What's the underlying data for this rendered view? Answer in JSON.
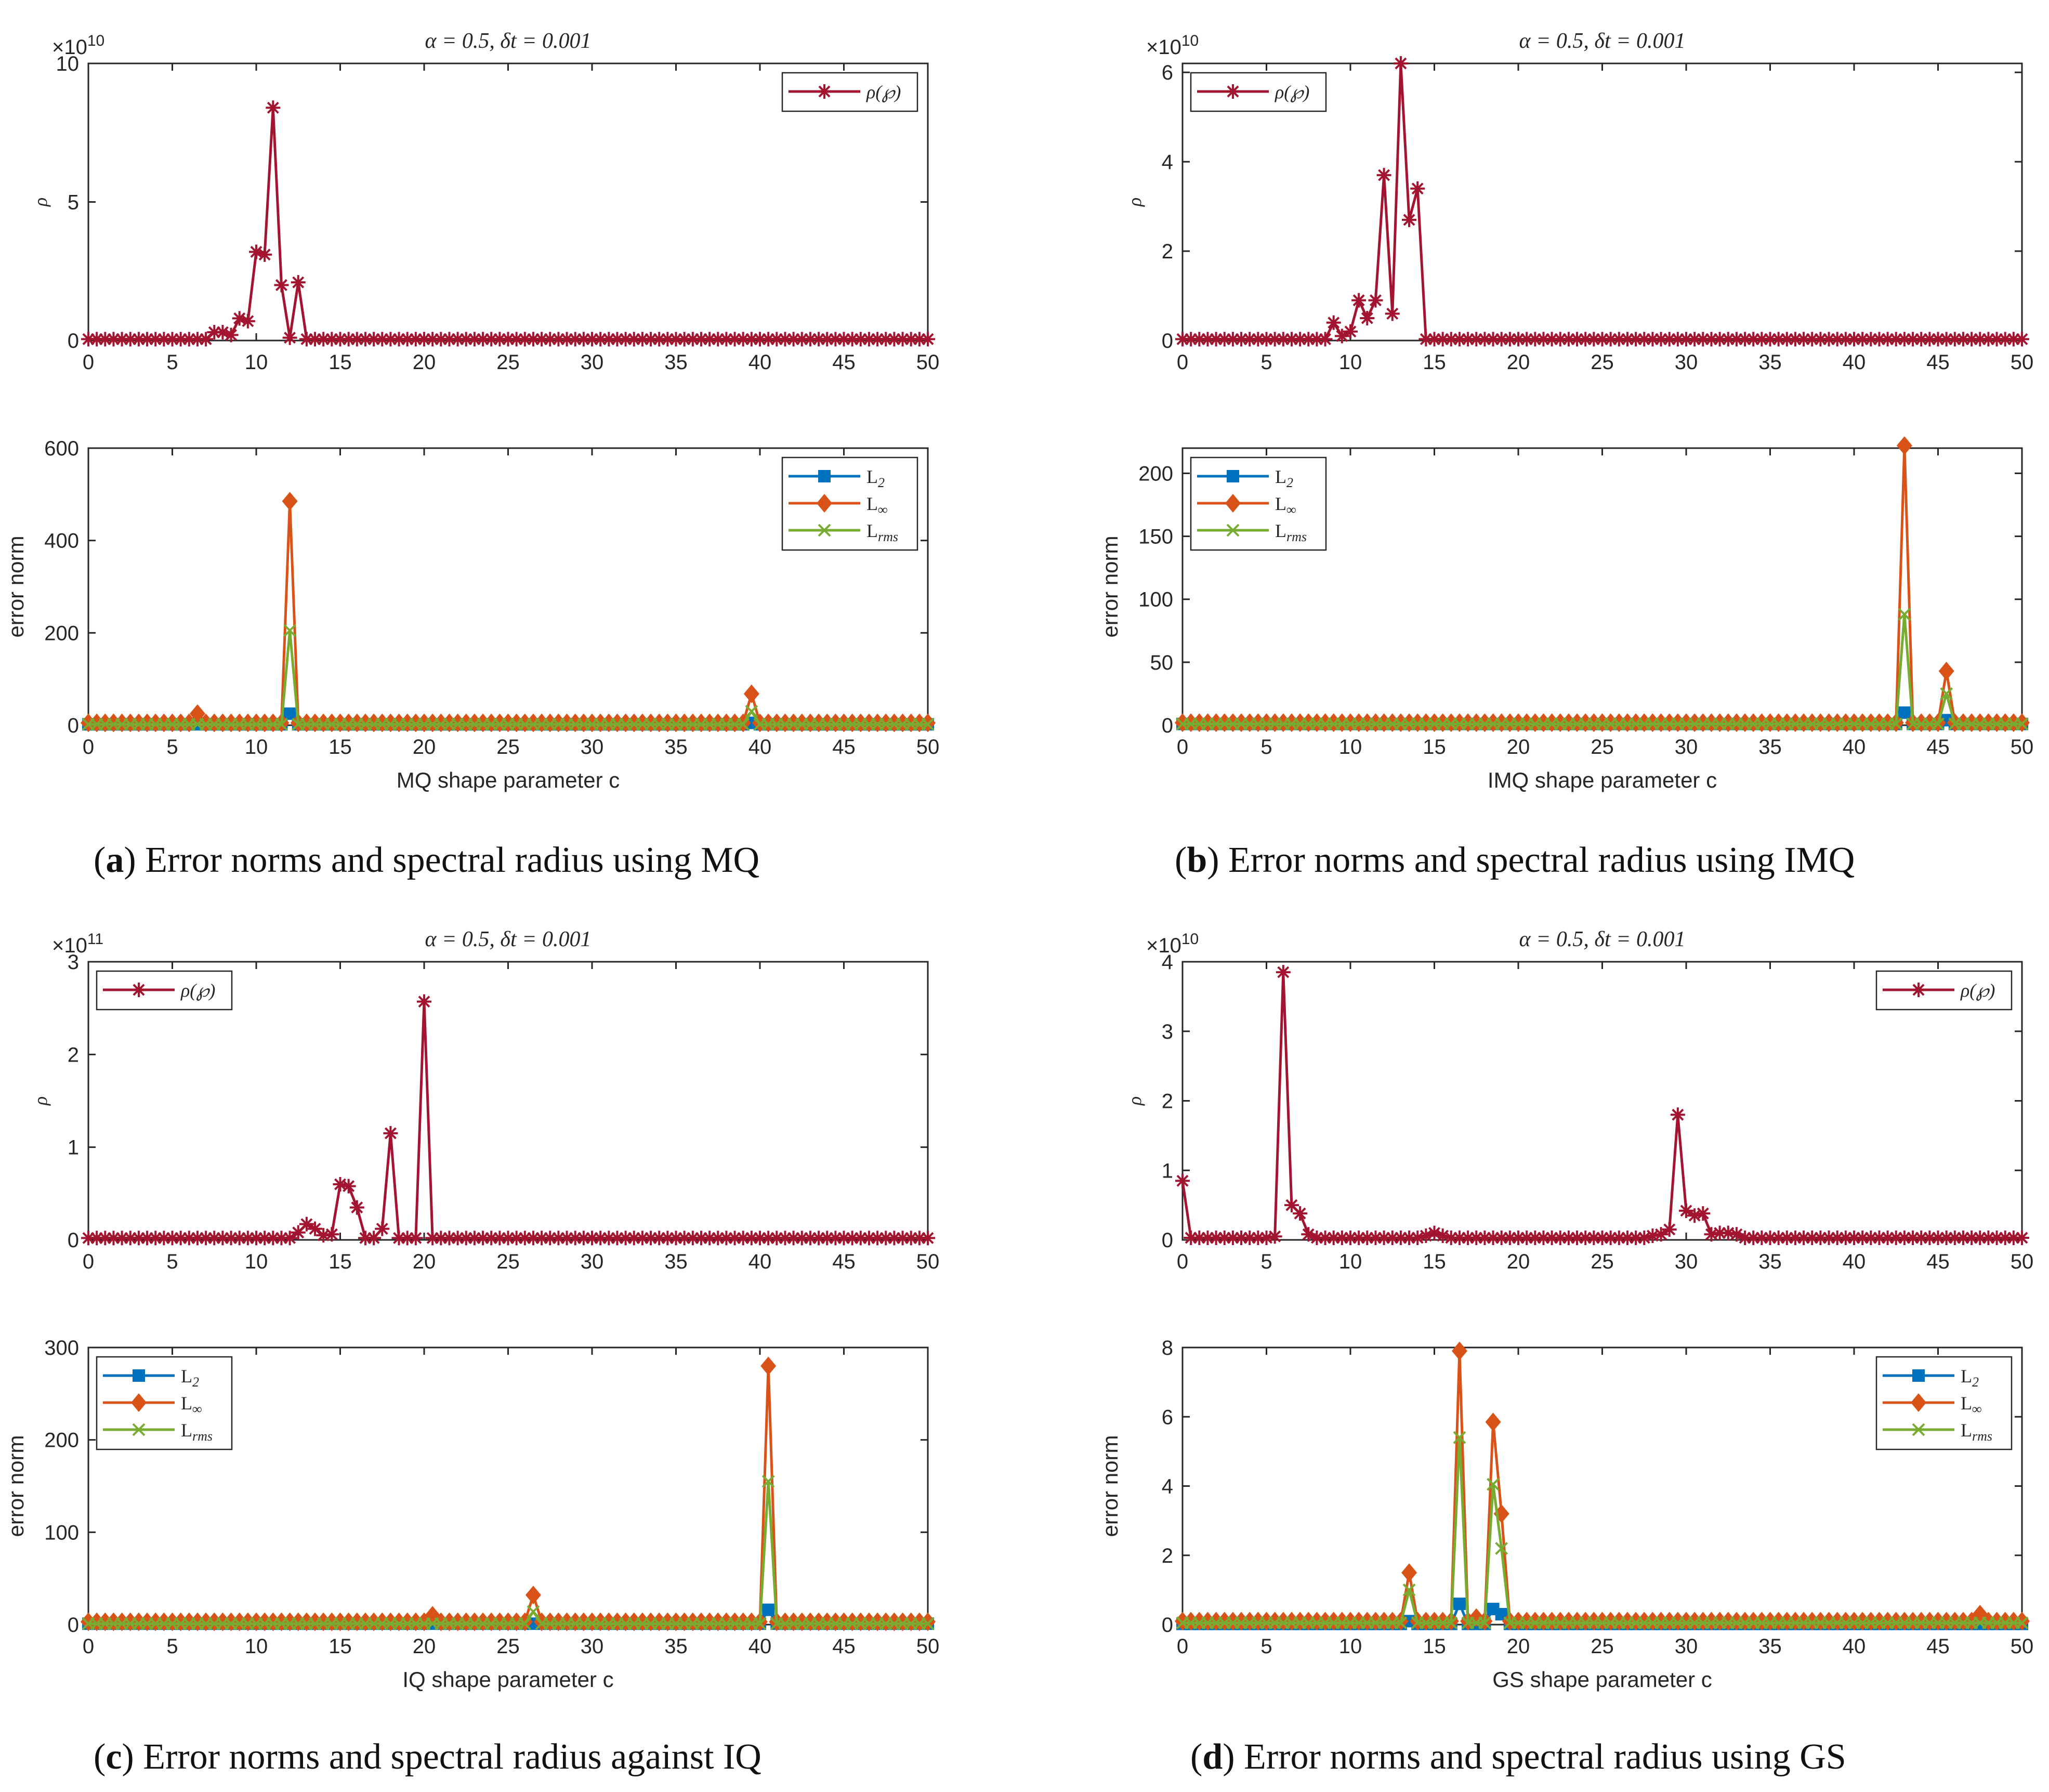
{
  "colors": {
    "rho": "#A2142F",
    "l2": "#0072BD",
    "linf": "#D95319",
    "lrms": "#77AC30",
    "axis": "#262626"
  },
  "captions": [
    {
      "letter": "a",
      "text": ") Error norms and spectral radius using MQ"
    },
    {
      "letter": "b",
      "text": ") Error norms and spectral radius using IMQ"
    },
    {
      "letter": "c",
      "text": ") Error norms and spectral radius against IQ"
    },
    {
      "letter": "d",
      "text": ") Error norms and spectral radius using GS"
    }
  ],
  "chart_data": [
    {
      "panel": "a",
      "type": "line",
      "title": "α = 0.5, δt = 0.001",
      "ylabel": "ρ",
      "xlabel": "",
      "xlim": [
        0,
        50
      ],
      "ylim": [
        0,
        10
      ],
      "yticks": [
        0,
        5,
        10
      ],
      "xticks": [
        0,
        5,
        10,
        15,
        20,
        25,
        30,
        35,
        40,
        45,
        50
      ],
      "exponent": "10",
      "legend_position": "top-right",
      "series": [
        {
          "name": "ρ(℘)",
          "key": "rho",
          "marker": "star",
          "spikes": [
            [
              7.5,
              0.3
            ],
            [
              8,
              0.3
            ],
            [
              8.5,
              0.2
            ],
            [
              9,
              0.8
            ],
            [
              9.5,
              0.7
            ],
            [
              10,
              3.2
            ],
            [
              10.5,
              3.1
            ],
            [
              11,
              8.4
            ],
            [
              11.5,
              2.0
            ],
            [
              12,
              0.1
            ],
            [
              12.5,
              2.1
            ]
          ],
          "base": 0.05
        }
      ]
    },
    {
      "panel": "a",
      "type": "line",
      "title": "",
      "ylabel": "error norm",
      "xlabel": "MQ shape parameter c",
      "xlim": [
        0,
        50
      ],
      "ylim": [
        0,
        600
      ],
      "yticks": [
        0,
        200,
        400,
        600
      ],
      "xticks": [
        0,
        5,
        10,
        15,
        20,
        25,
        30,
        35,
        40,
        45,
        50
      ],
      "legend_position": "top-right",
      "series": [
        {
          "name": "L2",
          "key": "l2",
          "marker": "square",
          "spikes": [
            [
              12,
              25
            ],
            [
              39.5,
              5
            ]
          ],
          "base": 2
        },
        {
          "name": "L∞",
          "key": "linf",
          "marker": "diamond",
          "spikes": [
            [
              6.5,
              25
            ],
            [
              12,
              485
            ],
            [
              39.5,
              68
            ]
          ],
          "base": 5
        },
        {
          "name": "Lrms",
          "key": "lrms",
          "marker": "x",
          "spikes": [
            [
              12,
              205
            ],
            [
              39.5,
              30
            ]
          ],
          "base": 2
        }
      ]
    },
    {
      "panel": "b",
      "type": "line",
      "title": "α = 0.5, δt = 0.001",
      "ylabel": "ρ",
      "xlabel": "",
      "xlim": [
        0,
        50
      ],
      "ylim": [
        0,
        6.2
      ],
      "yticks": [
        0,
        2,
        4,
        6
      ],
      "xticks": [
        0,
        5,
        10,
        15,
        20,
        25,
        30,
        35,
        40,
        45,
        50
      ],
      "exponent": "10",
      "legend_position": "top-left",
      "series": [
        {
          "name": "ρ(℘)",
          "key": "rho",
          "marker": "star",
          "spikes": [
            [
              9,
              0.4
            ],
            [
              9.5,
              0.1
            ],
            [
              10,
              0.2
            ],
            [
              10.5,
              0.9
            ],
            [
              11,
              0.5
            ],
            [
              11.5,
              0.9
            ],
            [
              12,
              3.7
            ],
            [
              12.5,
              0.6
            ],
            [
              13,
              6.2
            ],
            [
              13.5,
              2.7
            ],
            [
              14,
              3.4
            ]
          ],
          "base": 0.03
        }
      ]
    },
    {
      "panel": "b",
      "type": "line",
      "title": "",
      "ylabel": "error norm",
      "xlabel": "IMQ shape parameter c",
      "xlim": [
        0,
        50
      ],
      "ylim": [
        0,
        220
      ],
      "yticks": [
        0,
        50,
        100,
        150,
        200
      ],
      "xticks": [
        0,
        5,
        10,
        15,
        20,
        25,
        30,
        35,
        40,
        45,
        50
      ],
      "legend_position": "top-left",
      "series": [
        {
          "name": "L2",
          "key": "l2",
          "marker": "square",
          "spikes": [
            [
              43,
              10
            ],
            [
              45.5,
              4
            ]
          ],
          "base": 1
        },
        {
          "name": "L∞",
          "key": "linf",
          "marker": "diamond",
          "spikes": [
            [
              43,
              222
            ],
            [
              45.5,
              43
            ]
          ],
          "base": 2
        },
        {
          "name": "Lrms",
          "key": "lrms",
          "marker": "x",
          "spikes": [
            [
              43,
              88
            ],
            [
              45.5,
              25
            ]
          ],
          "base": 1
        }
      ]
    },
    {
      "panel": "c",
      "type": "line",
      "title": "α = 0.5, δt = 0.001",
      "ylabel": "ρ",
      "xlabel": "",
      "xlim": [
        0,
        50
      ],
      "ylim": [
        0,
        3
      ],
      "yticks": [
        0,
        1,
        2,
        3
      ],
      "xticks": [
        0,
        5,
        10,
        15,
        20,
        25,
        30,
        35,
        40,
        45,
        50
      ],
      "exponent": "11",
      "legend_position": "top-left",
      "series": [
        {
          "name": "ρ(℘)",
          "key": "rho",
          "marker": "star",
          "spikes": [
            [
              12.5,
              0.08
            ],
            [
              13,
              0.17
            ],
            [
              13.5,
              0.12
            ],
            [
              14,
              0.05
            ],
            [
              14.5,
              0.06
            ],
            [
              15,
              0.6
            ],
            [
              15.5,
              0.58
            ],
            [
              16,
              0.35
            ],
            [
              16.5,
              0.02
            ],
            [
              17,
              0.02
            ],
            [
              17.5,
              0.12
            ],
            [
              18,
              1.15
            ],
            [
              18.5,
              0.02
            ],
            [
              19,
              0.02
            ],
            [
              19.5,
              0.02
            ],
            [
              20,
              2.57
            ]
          ],
          "base": 0.02
        }
      ]
    },
    {
      "panel": "c",
      "type": "line",
      "title": "",
      "ylabel": "error norm",
      "xlabel": "IQ shape parameter c",
      "xlim": [
        0,
        50
      ],
      "ylim": [
        0,
        300
      ],
      "yticks": [
        0,
        100,
        200,
        300
      ],
      "xticks": [
        0,
        5,
        10,
        15,
        20,
        25,
        30,
        35,
        40,
        45,
        50
      ],
      "legend_position": "top-left",
      "series": [
        {
          "name": "L2",
          "key": "l2",
          "marker": "square",
          "spikes": [
            [
              40.5,
              16
            ]
          ],
          "base": 1
        },
        {
          "name": "L∞",
          "key": "linf",
          "marker": "diamond",
          "spikes": [
            [
              20.5,
              10
            ],
            [
              26.5,
              32
            ],
            [
              40.5,
              280
            ]
          ],
          "base": 3
        },
        {
          "name": "Lrms",
          "key": "lrms",
          "marker": "x",
          "spikes": [
            [
              26.5,
              14
            ],
            [
              40.5,
              155
            ]
          ],
          "base": 1
        }
      ]
    },
    {
      "panel": "d",
      "type": "line",
      "title": "α = 0.5, δt = 0.001",
      "ylabel": "ρ",
      "xlabel": "",
      "xlim": [
        0,
        50
      ],
      "ylim": [
        0,
        4
      ],
      "yticks": [
        0,
        1,
        2,
        3,
        4
      ],
      "xticks": [
        0,
        5,
        10,
        15,
        20,
        25,
        30,
        35,
        40,
        45,
        50
      ],
      "exponent": "10",
      "legend_position": "top-right",
      "series": [
        {
          "name": "ρ(℘)",
          "key": "rho",
          "marker": "star",
          "spikes": [
            [
              0,
              0.85
            ],
            [
              5.5,
              0.05
            ],
            [
              6,
              3.85
            ],
            [
              6.5,
              0.5
            ],
            [
              7,
              0.38
            ],
            [
              7.5,
              0.08
            ],
            [
              14.5,
              0.06
            ],
            [
              15,
              0.1
            ],
            [
              15.5,
              0.06
            ],
            [
              28,
              0.06
            ],
            [
              28.5,
              0.08
            ],
            [
              29,
              0.15
            ],
            [
              29.5,
              1.8
            ],
            [
              30,
              0.42
            ],
            [
              30.5,
              0.35
            ],
            [
              31,
              0.38
            ],
            [
              31.5,
              0.08
            ],
            [
              32,
              0.1
            ],
            [
              32.5,
              0.1
            ],
            [
              33,
              0.08
            ]
          ],
          "base": 0.03
        }
      ]
    },
    {
      "panel": "d",
      "type": "line",
      "title": "",
      "ylabel": "error norm",
      "xlabel": "GS shape parameter c",
      "xlim": [
        0,
        50
      ],
      "ylim": [
        0,
        8
      ],
      "yticks": [
        0,
        2,
        4,
        6,
        8
      ],
      "xticks": [
        0,
        5,
        10,
        15,
        20,
        25,
        30,
        35,
        40,
        45,
        50
      ],
      "legend_position": "top-right",
      "series": [
        {
          "name": "L2",
          "key": "l2",
          "marker": "square",
          "spikes": [
            [
              13.5,
              0.1
            ],
            [
              16.5,
              0.6
            ],
            [
              18.5,
              0.45
            ],
            [
              19,
              0.3
            ]
          ],
          "base": 0.02
        },
        {
          "name": "L∞",
          "key": "linf",
          "marker": "diamond",
          "spikes": [
            [
              13.5,
              1.5
            ],
            [
              16.5,
              7.9
            ],
            [
              17.5,
              0.2
            ],
            [
              18.5,
              5.85
            ],
            [
              19,
              3.2
            ],
            [
              47.5,
              0.3
            ]
          ],
          "base": 0.1
        },
        {
          "name": "Lrms",
          "key": "lrms",
          "marker": "x",
          "spikes": [
            [
              13.5,
              1.0
            ],
            [
              16.5,
              5.4
            ],
            [
              18.5,
              4.05
            ],
            [
              19,
              2.2
            ]
          ],
          "base": 0.05
        }
      ]
    }
  ]
}
